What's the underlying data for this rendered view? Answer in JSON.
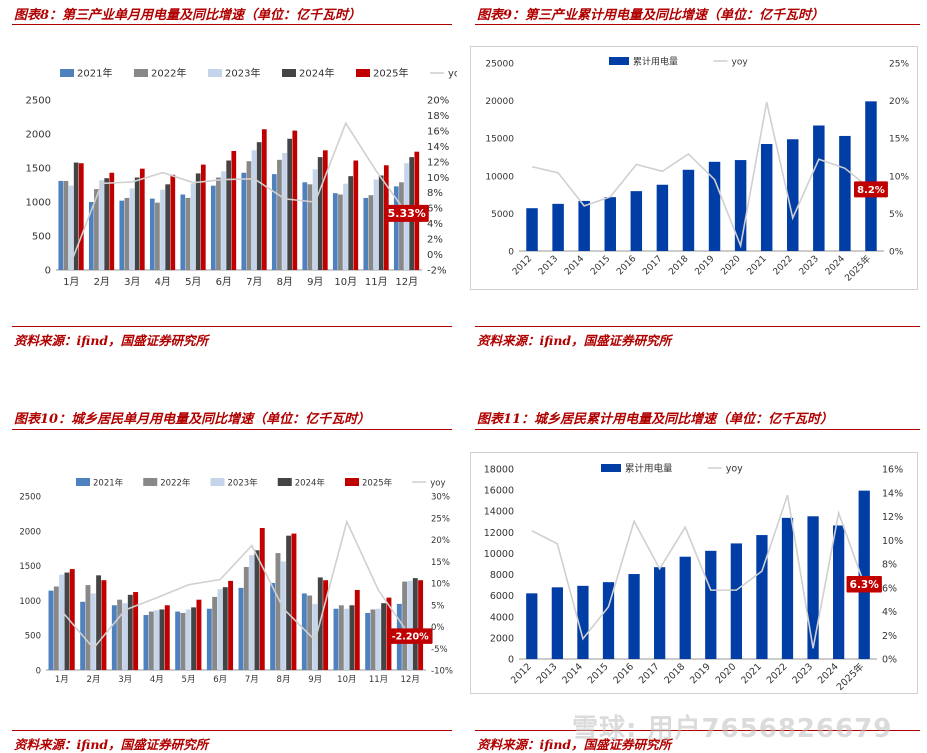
{
  "watermark": "雪球: 用户7656826679",
  "colors": {
    "brand_red": "#b00000",
    "c2021": "#4e81bd",
    "c2022": "#888888",
    "c2023": "#c4d4ea",
    "c2024": "#444444",
    "c2025": "#c00000",
    "yoy": "#d0d0d0",
    "cum_bar": "#003da5",
    "label_bg": "#c00000"
  },
  "panels": {
    "p8": {
      "title": "图表8：第三产业单月用电量及同比增速（单位：亿千瓦时）",
      "source": "资料来源：ifind，国盛证券研究所"
    },
    "p9": {
      "title": "图表9：第三产业累计用电量及同比增速（单位：亿千瓦时）",
      "source": "资料来源：ifind，国盛证券研究所"
    },
    "p10": {
      "title": "图表10：城乡居民单月用电量及同比增速（单位：亿千瓦时）",
      "source": "资料来源：ifind，国盛证券研究所"
    },
    "p11": {
      "title": "图表11：城乡居民累计用电量及同比增速（单位：亿千瓦时）",
      "source": "资料来源：ifind，国盛证券研究所"
    }
  },
  "chart_data": [
    {
      "id": "c8",
      "type": "bar",
      "title": "第三产业单月用电量及同比增速",
      "categories": [
        "1月",
        "2月",
        "3月",
        "4月",
        "5月",
        "6月",
        "7月",
        "8月",
        "9月",
        "10月",
        "11月",
        "12月"
      ],
      "series": [
        {
          "name": "2021年",
          "values": [
            1310,
            1000,
            1020,
            1050,
            1110,
            1240,
            1430,
            1410,
            1290,
            1130,
            1060,
            1230
          ]
        },
        {
          "name": "2022年",
          "values": [
            1310,
            1190,
            1060,
            990,
            1060,
            1360,
            1600,
            1620,
            1260,
            1110,
            1100,
            1290
          ]
        },
        {
          "name": "2023年",
          "values": [
            1240,
            1320,
            1200,
            1180,
            1270,
            1450,
            1760,
            1720,
            1480,
            1270,
            1330,
            1570
          ]
        },
        {
          "name": "2024年",
          "values": [
            1580,
            1350,
            1360,
            1260,
            1420,
            1610,
            1880,
            1930,
            1660,
            1380,
            1390,
            1660
          ]
        },
        {
          "name": "2025年",
          "values": [
            1570,
            1430,
            1490,
            1400,
            1550,
            1750,
            2070,
            2050,
            1760,
            1610,
            1540,
            1740
          ]
        }
      ],
      "yoy": {
        "name": "yoy",
        "values": [
          -1.0,
          9.2,
          9.4,
          10.6,
          9.3,
          9.7,
          9.8,
          7.2,
          6.8,
          17.0,
          10.8,
          5.33
        ]
      },
      "ylim": [
        0,
        2500
      ],
      "yticks": [
        0,
        500,
        1000,
        1500,
        2000,
        2500
      ],
      "y2lim": [
        -2,
        20
      ],
      "y2ticks": [
        -2,
        0,
        2,
        4,
        6,
        8,
        10,
        12,
        14,
        16,
        18,
        20
      ],
      "y2_suffix": "%",
      "legend": [
        "2021年",
        "2022年",
        "2023年",
        "2024年",
        "2025年",
        "yoy"
      ],
      "annotation": "5.33%"
    },
    {
      "id": "c9",
      "type": "bar",
      "title": "第三产业累计用电量及同比增速",
      "categories": [
        "2012",
        "2013",
        "2014",
        "2015",
        "2016",
        "2017",
        "2018",
        "2019",
        "2020",
        "2021",
        "2022",
        "2023",
        "2024",
        "2025年"
      ],
      "series": [
        {
          "name": "累计用电量",
          "values": [
            5690,
            6270,
            6660,
            7160,
            7960,
            8810,
            10800,
            11860,
            12090,
            14230,
            14860,
            16690,
            15300,
            19900
          ]
        }
      ],
      "yoy": {
        "name": "yoy",
        "values": [
          11.2,
          10.4,
          6.0,
          7.2,
          11.5,
          10.6,
          12.9,
          9.5,
          0.7,
          19.8,
          4.4,
          12.2,
          11.0,
          8.2
        ]
      },
      "ylim": [
        0,
        25000
      ],
      "yticks": [
        0,
        5000,
        10000,
        15000,
        20000,
        25000
      ],
      "y2lim": [
        0,
        25
      ],
      "y2ticks": [
        0,
        5,
        10,
        15,
        20,
        25
      ],
      "y2_suffix": "%",
      "legend": [
        "累计用电量",
        "yoy"
      ],
      "annotation": "8.2%"
    },
    {
      "id": "c10",
      "type": "bar",
      "title": "城乡居民单月用电量及同比增速",
      "categories": [
        "1月",
        "2月",
        "3月",
        "4月",
        "5月",
        "6月",
        "7月",
        "8月",
        "9月",
        "10月",
        "11月",
        "12月"
      ],
      "series": [
        {
          "name": "2021年",
          "values": [
            1140,
            980,
            930,
            790,
            840,
            880,
            1180,
            1250,
            1100,
            880,
            820,
            950
          ]
        },
        {
          "name": "2022年",
          "values": [
            1200,
            1220,
            1010,
            840,
            820,
            1050,
            1480,
            1680,
            1070,
            930,
            870,
            1270
          ]
        },
        {
          "name": "2023年",
          "values": [
            1370,
            1100,
            960,
            860,
            870,
            1160,
            1650,
            1560,
            950,
            880,
            880,
            1280
          ]
        },
        {
          "name": "2024年",
          "values": [
            1400,
            1360,
            1080,
            870,
            900,
            1190,
            1720,
            1930,
            1330,
            930,
            960,
            1320
          ]
        },
        {
          "name": "2025年",
          "values": [
            1450,
            1290,
            1120,
            930,
            1010,
            1280,
            2040,
            1960,
            1290,
            1150,
            1040,
            1290
          ]
        }
      ],
      "yoy": {
        "name": "yoy",
        "values": [
          3.5,
          -5.0,
          3.8,
          6.6,
          9.6,
          10.8,
          18.6,
          4.1,
          -3.2,
          24.1,
          8.3,
          -2.2
        ]
      },
      "ylim": [
        0,
        2500
      ],
      "yticks": [
        0,
        500,
        1000,
        1500,
        2000,
        2500
      ],
      "y2lim": [
        -10,
        30
      ],
      "y2ticks": [
        -10,
        -5,
        0,
        5,
        10,
        15,
        20,
        25,
        30
      ],
      "y2_suffix": "%",
      "legend": [
        "2021年",
        "2022年",
        "2023年",
        "2024年",
        "2025年",
        "yoy"
      ],
      "annotation": "-2.20%"
    },
    {
      "id": "c11",
      "type": "bar",
      "title": "城乡居民累计用电量及同比增速",
      "categories": [
        "2012",
        "2013",
        "2014",
        "2015",
        "2016",
        "2017",
        "2018",
        "2019",
        "2020",
        "2021",
        "2022",
        "2023",
        "2024",
        "2025年"
      ],
      "series": [
        {
          "name": "累计用电量",
          "values": [
            6220,
            6790,
            6930,
            7280,
            8050,
            8700,
            9690,
            10250,
            10950,
            11740,
            13370,
            13520,
            12650,
            15950
          ]
        }
      ],
      "yoy": {
        "name": "yoy",
        "values": [
          10.8,
          9.7,
          1.7,
          4.4,
          11.6,
          7.6,
          11.1,
          5.8,
          5.8,
          7.4,
          13.8,
          0.9,
          12.3,
          6.3
        ]
      },
      "ylim": [
        0,
        18000
      ],
      "yticks": [
        0,
        2000,
        4000,
        6000,
        8000,
        10000,
        12000,
        14000,
        16000,
        18000
      ],
      "y2lim": [
        0,
        16
      ],
      "y2ticks": [
        0,
        2,
        4,
        6,
        8,
        10,
        12,
        14,
        16
      ],
      "y2_suffix": "%",
      "legend": [
        "累计用电量",
        "yoy"
      ],
      "annotation": "6.3%"
    }
  ]
}
